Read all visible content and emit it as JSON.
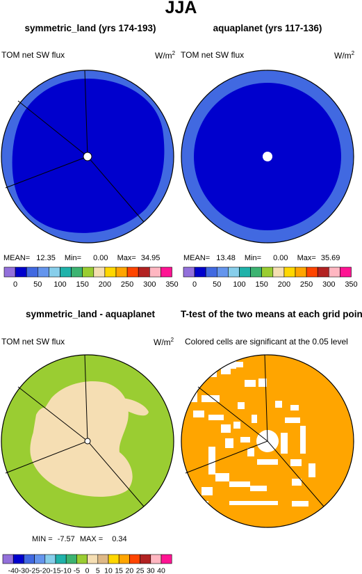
{
  "figure": {
    "title": "JJA"
  },
  "panels": [
    {
      "title": "symmetric_land (yrs 174-193)",
      "left_label": "TOM net SW flux",
      "units": "W/m",
      "units_sup": "2",
      "stats": {
        "mean_label": "MEAN=",
        "mean": "12.35",
        "min_label": "Min=",
        "min": "0.00",
        "max_label": "Max=",
        "max": "34.95"
      }
    },
    {
      "title": "aquaplanet (yrs 117-136)",
      "left_label": "TOM net SW flux",
      "units": "W/m",
      "units_sup": "2",
      "stats": {
        "mean_label": "MEAN=",
        "mean": "13.48",
        "min_label": "Min=",
        "min": "0.00",
        "max_label": "Max=",
        "max": "35.69"
      }
    },
    {
      "title": "symmetric_land - aquaplanet",
      "left_label": "TOM net SW flux",
      "units": "W/m",
      "units_sup": "2",
      "stats": {
        "min_label": "MIN =",
        "min": "-7.57",
        "max_label": "MAX =",
        "max": "0.34"
      }
    },
    {
      "title": "T-test of the two means at each grid point",
      "left_label": "Colored cells are significant at the 0.05 level"
    }
  ],
  "colorbars": {
    "flux": {
      "colors": [
        "#9370db",
        "#0000cd",
        "#4169e1",
        "#6495ed",
        "#87ceeb",
        "#20b2aa",
        "#3cb371",
        "#9acd32",
        "#f5deb3",
        "#ffd700",
        "#ffa500",
        "#ff4500",
        "#b22222",
        "#ffb6c1",
        "#ff1493"
      ],
      "labels": [
        "0",
        "50",
        "100",
        "150",
        "200",
        "250",
        "300",
        "350"
      ]
    },
    "diff": {
      "colors": [
        "#9370db",
        "#0000cd",
        "#4169e1",
        "#6495ed",
        "#87ceeb",
        "#20b2aa",
        "#3cb371",
        "#9acd32",
        "#f5deb3",
        "#deb887",
        "#ffd700",
        "#ffa500",
        "#ff4500",
        "#b22222",
        "#ffb6c1",
        "#ff1493"
      ],
      "labels": [
        "-40",
        "-30",
        "-25",
        "-20",
        "-15",
        "-10",
        "-5",
        "0",
        "5",
        "10",
        "15",
        "20",
        "25",
        "30",
        "40"
      ]
    }
  },
  "chart_data": [
    {
      "type": "heatmap",
      "title": "symmetric_land (yrs 174-193)",
      "projection": "polar",
      "variable": "TOM net SW flux",
      "units": "W/m2",
      "mean": 12.35,
      "min": 0.0,
      "max": 34.95,
      "colors_shown": [
        "#0000cd",
        "#4169e1"
      ]
    },
    {
      "type": "heatmap",
      "title": "aquaplanet (yrs 117-136)",
      "projection": "polar",
      "variable": "TOM net SW flux",
      "units": "W/m2",
      "mean": 13.48,
      "min": 0.0,
      "max": 35.69,
      "colors_shown": [
        "#0000cd",
        "#4169e1"
      ]
    },
    {
      "type": "heatmap",
      "title": "symmetric_land - aquaplanet",
      "projection": "polar",
      "variable": "TOM net SW flux",
      "units": "W/m2",
      "min": -7.57,
      "max": 0.34,
      "colors_shown": [
        "#9acd32",
        "#f5deb3"
      ]
    },
    {
      "type": "heatmap",
      "title": "T-test of the two means at each grid point",
      "projection": "polar",
      "significance_level": 0.05,
      "colors_shown": [
        "#ffa500",
        "#ffffff"
      ]
    }
  ]
}
